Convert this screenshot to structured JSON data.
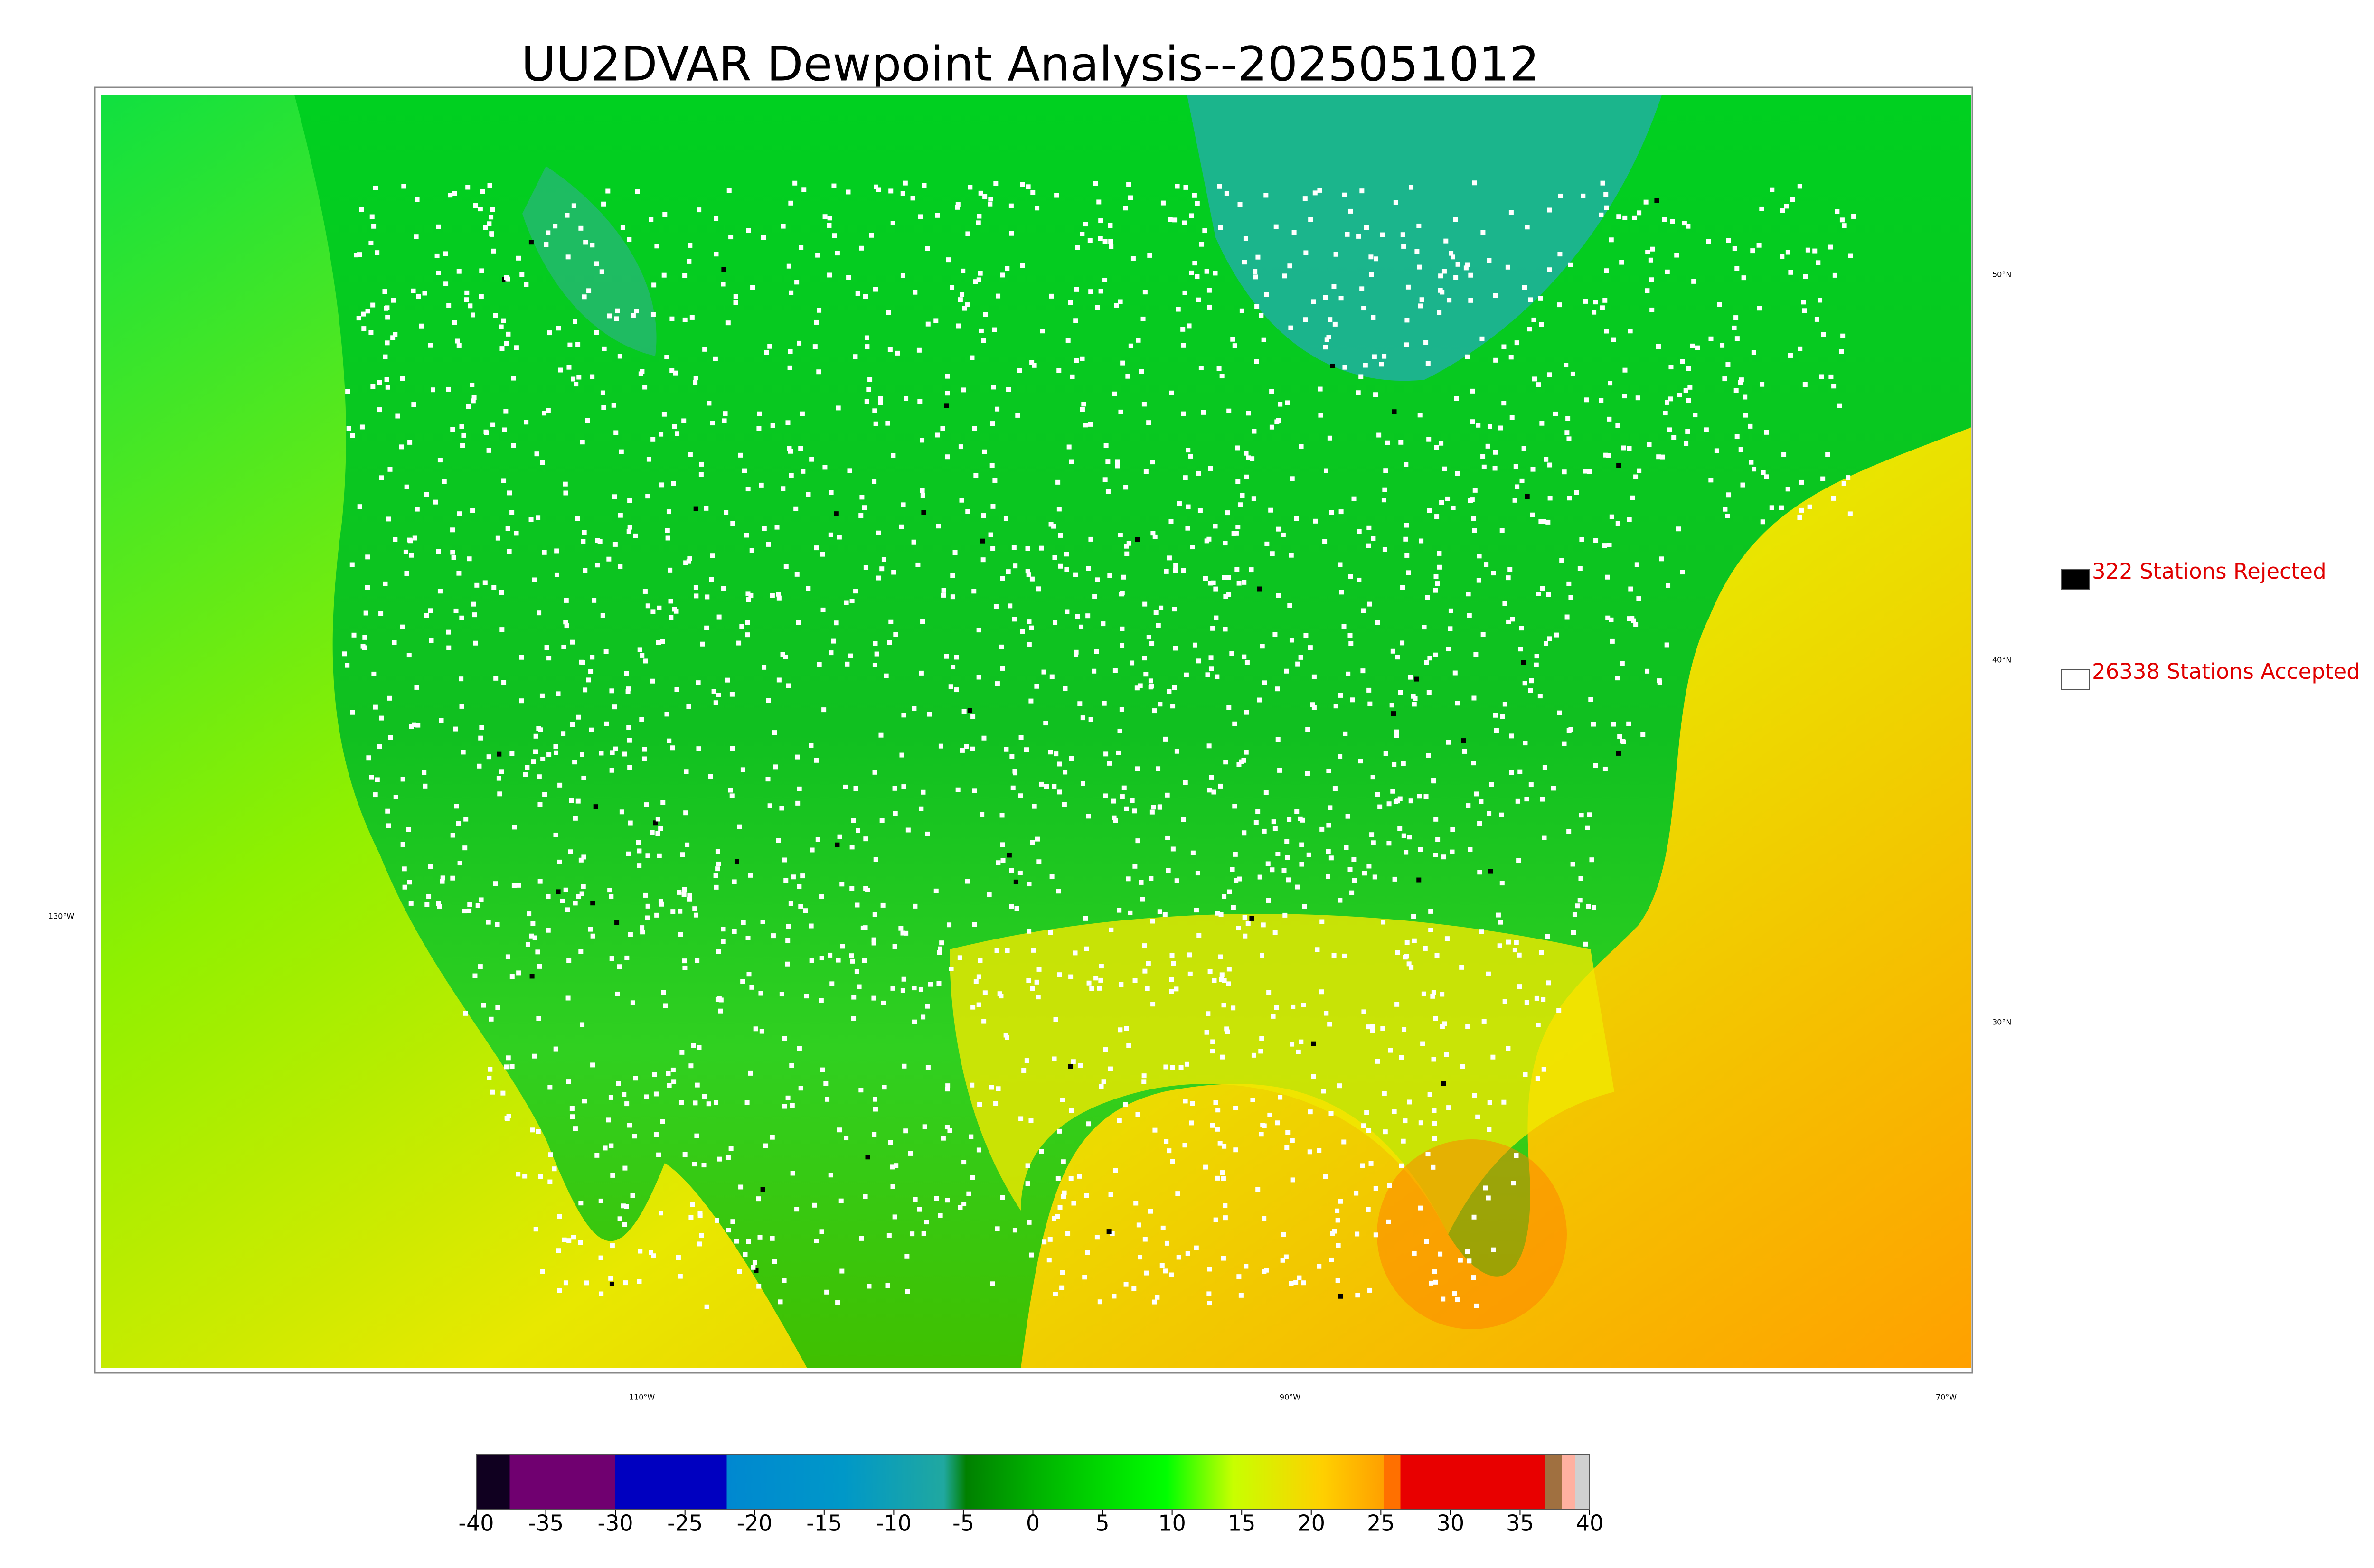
{
  "title": "UU2DVAR Dewpoint Analysis--2025051012",
  "legend": [
    {
      "label": "322 Stations Rejected",
      "color": "#000000"
    },
    {
      "label": "26338 Stations Accepted",
      "color": "#ffffff"
    }
  ],
  "latitude_labels": [
    "50°N",
    "40°N",
    "30°N"
  ],
  "longitude_labels": [
    "130°W",
    "110°W",
    "90°W",
    "70°W"
  ],
  "colorbar": {
    "range": [
      -40,
      40
    ],
    "ticks": [
      -40,
      -35,
      -30,
      -25,
      -20,
      -15,
      -10,
      -5,
      0,
      5,
      10,
      15,
      20,
      25,
      30,
      35,
      40
    ]
  }
}
